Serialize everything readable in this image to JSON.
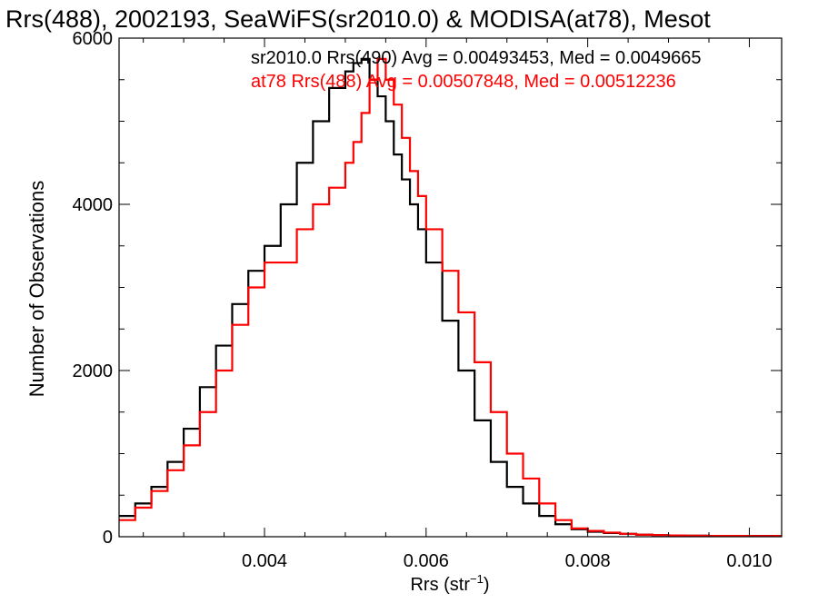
{
  "chart_data": {
    "type": "line",
    "title": "Rrs(488), 2002193, SeaWiFS(sr2010.0) & MODISA(at78), Mesot",
    "xlabel": "Rrs (str",
    "xlabel_sup": "−1",
    "xlabel_close": ")",
    "ylabel": "Number of Observations",
    "xlim": [
      0.0022,
      0.0104
    ],
    "ylim": [
      0,
      6000
    ],
    "xticks": [
      0.004,
      0.006,
      0.008,
      0.01
    ],
    "xtick_labels": [
      "0.004",
      "0.006",
      "0.008",
      "0.010"
    ],
    "yticks": [
      0,
      2000,
      4000,
      6000
    ],
    "ytick_labels": [
      "0",
      "2000",
      "4000",
      "6000"
    ],
    "grid": false,
    "legend_position": "top-right",
    "legend": [
      "sr2010.0 Rrs(490) Avg = 0.00493453, Med = 0.0049665",
      "at78 Rrs(488) Avg = 0.00507848, Med = 0.00512236"
    ],
    "series": [
      {
        "color": "#000000",
        "x": [
          0.0022,
          0.0024,
          0.0026,
          0.0028,
          0.003,
          0.0032,
          0.0034,
          0.0036,
          0.0038,
          0.004,
          0.0042,
          0.0044,
          0.0046,
          0.0048,
          0.005,
          0.0051,
          0.0052,
          0.0053,
          0.0054,
          0.0055,
          0.0056,
          0.0057,
          0.0058,
          0.0059,
          0.006,
          0.0062,
          0.0064,
          0.0066,
          0.0068,
          0.007,
          0.0072,
          0.0074,
          0.0076,
          0.0078,
          0.008,
          0.0082,
          0.0084,
          0.0086,
          0.0088,
          0.009,
          0.0092,
          0.0095,
          0.01,
          0.0104
        ],
        "y": [
          250,
          400,
          600,
          900,
          1300,
          1800,
          2300,
          2800,
          3200,
          3500,
          4000,
          4500,
          5000,
          5400,
          5600,
          5700,
          5750,
          5500,
          5300,
          5000,
          4600,
          4300,
          4000,
          3700,
          3300,
          2600,
          2000,
          1400,
          900,
          600,
          400,
          250,
          150,
          90,
          60,
          45,
          35,
          25,
          20,
          15,
          12,
          10,
          10,
          5
        ]
      },
      {
        "color": "#ff0000",
        "x": [
          0.0022,
          0.0024,
          0.0026,
          0.0028,
          0.003,
          0.0032,
          0.0034,
          0.0036,
          0.0038,
          0.004,
          0.0042,
          0.0044,
          0.0046,
          0.0048,
          0.005,
          0.0051,
          0.0052,
          0.0053,
          0.0054,
          0.0055,
          0.0056,
          0.0057,
          0.0058,
          0.0059,
          0.006,
          0.0062,
          0.0064,
          0.0066,
          0.0068,
          0.007,
          0.0072,
          0.0074,
          0.0076,
          0.0078,
          0.008,
          0.0082,
          0.0084,
          0.0086,
          0.0088,
          0.009,
          0.0092,
          0.0095,
          0.01,
          0.0104
        ],
        "y": [
          200,
          350,
          550,
          800,
          1100,
          1500,
          2000,
          2550,
          3000,
          3300,
          3300,
          3700,
          4000,
          4200,
          4500,
          4750,
          5100,
          5500,
          5750,
          5500,
          5200,
          4800,
          4400,
          4100,
          3700,
          3200,
          2700,
          2100,
          1500,
          1000,
          700,
          400,
          200,
          100,
          70,
          50,
          35,
          25,
          20,
          15,
          12,
          10,
          8,
          5
        ]
      }
    ]
  }
}
